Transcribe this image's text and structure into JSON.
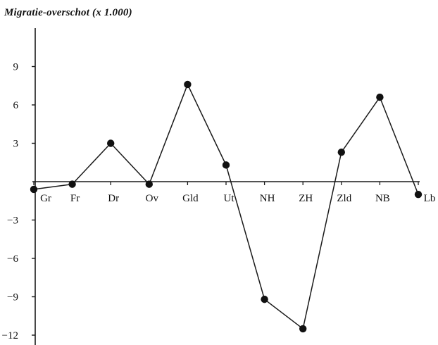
{
  "chart_data": {
    "type": "line",
    "title": "Migratie-overschot (x 1.000)",
    "xlabel": "",
    "ylabel": "",
    "categories": [
      "Gr",
      "Fr",
      "Dr",
      "Ov",
      "Gld",
      "Ut",
      "NH",
      "ZH",
      "Zld",
      "NB",
      "Lb"
    ],
    "series": [
      {
        "values": [
          -0.6,
          -0.2,
          3.0,
          -0.2,
          7.6,
          1.3,
          -9.2,
          -11.5,
          2.3,
          6.6,
          -1.0
        ]
      }
    ],
    "y_ticks": [
      -12,
      -9,
      -6,
      -3,
      3,
      6,
      9
    ],
    "y_tick_labels": [
      "−12",
      "−9",
      "−6",
      "−3",
      "3",
      "6",
      "9"
    ],
    "ylim": [
      -13,
      12
    ],
    "grid": false,
    "legend": "none",
    "colors": {
      "line": "#1a1a1a",
      "marker": "#111111",
      "axis": "#1a1a1a"
    }
  }
}
